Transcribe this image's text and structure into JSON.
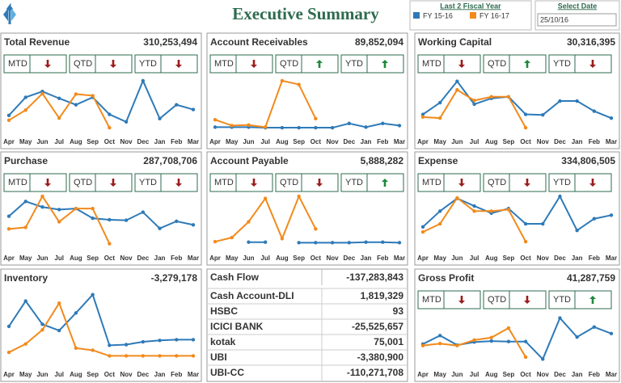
{
  "header": {
    "title": "Executive Summary",
    "legend_title": "Last 2 Fiscal Year",
    "date_label": "Select Date",
    "date_value": "25/10/16"
  },
  "chart_data": [
    {
      "type": "line",
      "title": "Total Revenue",
      "total": "310,253,494",
      "kpis": [
        {
          "label": "MTD",
          "trend": "down"
        },
        {
          "label": "QTD",
          "trend": "down"
        },
        {
          "label": "YTD",
          "trend": "down"
        }
      ],
      "categories": [
        "Apr",
        "May",
        "Jun",
        "Jul",
        "Aug",
        "Sep",
        "Oct",
        "Nov",
        "Dec",
        "Jan",
        "Feb",
        "Mar"
      ],
      "ylim": [
        0,
        100
      ],
      "series": [
        {
          "name": "FY 15-16",
          "color": "#2e7ab8",
          "values": [
            29,
            63,
            74,
            61,
            49,
            63,
            31,
            17,
            94,
            23,
            49,
            40
          ]
        },
        {
          "name": "FY 16-17",
          "color": "#f28a1c",
          "values": [
            20,
            39,
            70,
            24,
            69,
            66,
            6,
            null,
            null,
            null,
            null,
            null
          ]
        }
      ]
    },
    {
      "type": "line",
      "title": "Account Receivables",
      "total": "89,852,094",
      "kpis": [
        {
          "label": "MTD",
          "trend": "down"
        },
        {
          "label": "QTD",
          "trend": "up"
        },
        {
          "label": "YTD",
          "trend": "up"
        }
      ],
      "categories": [
        "Apr",
        "May",
        "Jun",
        "Jul",
        "Aug",
        "Sep",
        "Oct",
        "Nov",
        "Dec",
        "Jan",
        "Feb",
        "Mar"
      ],
      "ylim": [
        0,
        100
      ],
      "series": [
        {
          "name": "FY 15-16",
          "color": "#2e7ab8",
          "values": [
            7,
            7,
            7,
            6,
            6,
            6,
            6,
            6,
            14,
            7,
            14,
            10
          ]
        },
        {
          "name": "FY 16-17",
          "color": "#f28a1c",
          "values": [
            21,
            10,
            11,
            7,
            94,
            87,
            23,
            null,
            null,
            null,
            null,
            null
          ]
        }
      ]
    },
    {
      "type": "line",
      "title": "Working Capital",
      "total": "30,316,395",
      "kpis": [
        {
          "label": "MTD",
          "trend": "down"
        },
        {
          "label": "QTD",
          "trend": "up"
        },
        {
          "label": "YTD",
          "trend": "down"
        }
      ],
      "categories": [
        "Apr",
        "May",
        "Jun",
        "Jul",
        "Aug",
        "Sep",
        "Oct",
        "Nov",
        "Dec",
        "Jan",
        "Feb",
        "Mar"
      ],
      "ylim": [
        0,
        100
      ],
      "series": [
        {
          "name": "FY 15-16",
          "color": "#2e7ab8",
          "values": [
            31,
            53,
            93,
            50,
            61,
            64,
            31,
            30,
            56,
            56,
            37,
            24
          ]
        },
        {
          "name": "FY 16-17",
          "color": "#f28a1c",
          "values": [
            26,
            24,
            77,
            57,
            64,
            64,
            6,
            null,
            null,
            null,
            null,
            null
          ]
        }
      ]
    },
    {
      "type": "line",
      "title": "Purchase",
      "total": "287,708,706",
      "kpis": [
        {
          "label": "MTD",
          "trend": "down"
        },
        {
          "label": "QTD",
          "trend": "down"
        },
        {
          "label": "YTD",
          "trend": "down"
        }
      ],
      "categories": [
        "Apr",
        "May",
        "Jun",
        "Jul",
        "Aug",
        "Sep",
        "Oct",
        "Nov",
        "Dec",
        "Jan",
        "Feb",
        "Mar"
      ],
      "ylim": [
        0,
        100
      ],
      "series": [
        {
          "name": "FY 15-16",
          "color": "#2e7ab8",
          "values": [
            61,
            90,
            79,
            74,
            76,
            57,
            54,
            53,
            69,
            37,
            51,
            44
          ]
        },
        {
          "name": "FY 16-17",
          "color": "#f28a1c",
          "values": [
            36,
            39,
            100,
            50,
            76,
            76,
            7,
            null,
            null,
            null,
            null,
            null
          ]
        }
      ]
    },
    {
      "type": "line",
      "title": "Account Payable",
      "total": "5,888,282",
      "kpis": [
        {
          "label": "MTD",
          "trend": "down"
        },
        {
          "label": "QTD",
          "trend": "down"
        },
        {
          "label": "YTD",
          "trend": "up"
        }
      ],
      "categories": [
        "Apr",
        "May",
        "Jun",
        "Jul",
        "Aug",
        "Sep",
        "Oct",
        "Nov",
        "Dec",
        "Jan",
        "Feb",
        "Mar"
      ],
      "ylim": [
        0,
        100
      ],
      "series": [
        {
          "name": "FY 15-16",
          "color": "#2e7ab8",
          "values": [
            null,
            null,
            10,
            10,
            null,
            9,
            9,
            9,
            9,
            10,
            10,
            9
          ]
        },
        {
          "name": "FY 16-17",
          "color": "#f28a1c",
          "values": [
            11,
            19,
            50,
            96,
            17,
            100,
            36,
            null,
            null,
            null,
            null,
            null
          ]
        }
      ]
    },
    {
      "type": "line",
      "title": "Expense",
      "total": "334,806,505",
      "kpis": [
        {
          "label": "MTD",
          "trend": "down"
        },
        {
          "label": "QTD",
          "trend": "down"
        },
        {
          "label": "YTD",
          "trend": "down"
        }
      ],
      "categories": [
        "Apr",
        "May",
        "Jun",
        "Jul",
        "Aug",
        "Sep",
        "Oct",
        "Nov",
        "Dec",
        "Jan",
        "Feb",
        "Mar"
      ],
      "ylim": [
        0,
        100
      ],
      "series": [
        {
          "name": "FY 15-16",
          "color": "#2e7ab8",
          "values": [
            40,
            71,
            96,
            81,
            67,
            76,
            46,
            46,
            100,
            33,
            56,
            63
          ]
        },
        {
          "name": "FY 16-17",
          "color": "#f28a1c",
          "values": [
            30,
            46,
            97,
            71,
            71,
            74,
            11,
            null,
            null,
            null,
            null,
            null
          ]
        }
      ]
    },
    {
      "type": "line",
      "title": "Inventory",
      "total": "-3,279,178",
      "categories": [
        "Apr",
        "May",
        "Jun",
        "Jul",
        "Aug",
        "Sep",
        "Oct",
        "Nov",
        "Dec",
        "Jan",
        "Feb",
        "Mar"
      ],
      "ylim": [
        0,
        100
      ],
      "series": [
        {
          "name": "FY 15-16",
          "color": "#2e7ab8",
          "values": [
            53,
            89,
            56,
            47,
            72,
            98,
            26,
            27,
            31,
            33,
            34,
            34
          ]
        },
        {
          "name": "FY 16-17",
          "color": "#f28a1c",
          "values": [
            16,
            28,
            48,
            86,
            22,
            19,
            11,
            11,
            11,
            11,
            11,
            11
          ]
        }
      ]
    },
    {
      "type": "line",
      "title": "Gross Profit",
      "total": "41,287,759",
      "kpis": [
        {
          "label": "MTD",
          "trend": "down"
        },
        {
          "label": "QTD",
          "trend": "down"
        },
        {
          "label": "YTD",
          "trend": "up"
        }
      ],
      "categories": [
        "Apr",
        "May",
        "Jun",
        "Jul",
        "Aug",
        "Sep",
        "Oct",
        "Nov",
        "Dec",
        "Jan",
        "Feb",
        "Mar"
      ],
      "ylim": [
        0,
        100
      ],
      "series": [
        {
          "name": "FY 15-16",
          "color": "#2e7ab8",
          "values": [
            39,
            56,
            37,
            43,
            45,
            44,
            44,
            9,
            91,
            53,
            73,
            60
          ]
        },
        {
          "name": "FY 16-17",
          "color": "#f28a1c",
          "values": [
            36,
            40,
            36,
            47,
            52,
            71,
            13,
            null,
            null,
            null,
            null,
            null
          ]
        }
      ]
    }
  ],
  "cash_flow": {
    "title": "Cash Flow",
    "total": "-137,283,843",
    "rows": [
      [
        "Cash Account-DLI",
        "1,819,329"
      ],
      [
        "HSBC",
        "93"
      ],
      [
        "ICICI BANK",
        "-25,525,657"
      ],
      [
        "kotak",
        "75,001"
      ],
      [
        "UBI",
        "-3,380,900"
      ],
      [
        "UBI-CC",
        "-110,271,708"
      ]
    ]
  }
}
